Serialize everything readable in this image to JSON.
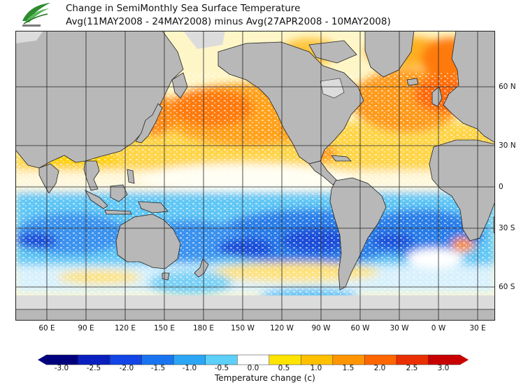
{
  "header": {
    "title_line1": "Change in SemiMonthly Sea Surface Temperature",
    "title_line2": "Avg(11MAY2008 - 24MAY2008) minus Avg(27APR2008 - 10MAY2008)"
  },
  "map": {
    "lat_labels": [
      "60 N",
      "30 N",
      "0",
      "30 S",
      "60 S"
    ],
    "lon_labels": [
      "60 E",
      "90 E",
      "120 E",
      "150 E",
      "180 E",
      "150 W",
      "120 W",
      "90 W",
      "60 W",
      "30 W",
      "0 W",
      "30 E"
    ]
  },
  "colorbar": {
    "title": "Temperature change  (c)",
    "labels": [
      "-3.0",
      "-2.5",
      "-2.0",
      "-1.5",
      "-1.0",
      "-0.5",
      "0.0",
      "0.5",
      "1.0",
      "1.5",
      "2.0",
      "2.5",
      "3.0"
    ],
    "colors": [
      "#00007f",
      "#0a1fbf",
      "#1244e6",
      "#1a74f0",
      "#2aa6f5",
      "#5cd0f8",
      "#ffffff",
      "#ffe400",
      "#ffc000",
      "#ff9500",
      "#ff6600",
      "#ea3000",
      "#c80000"
    ]
  },
  "palette": {
    "land": "#b8b8b8",
    "ice": "#dcdcdc",
    "grid": "#222222"
  }
}
